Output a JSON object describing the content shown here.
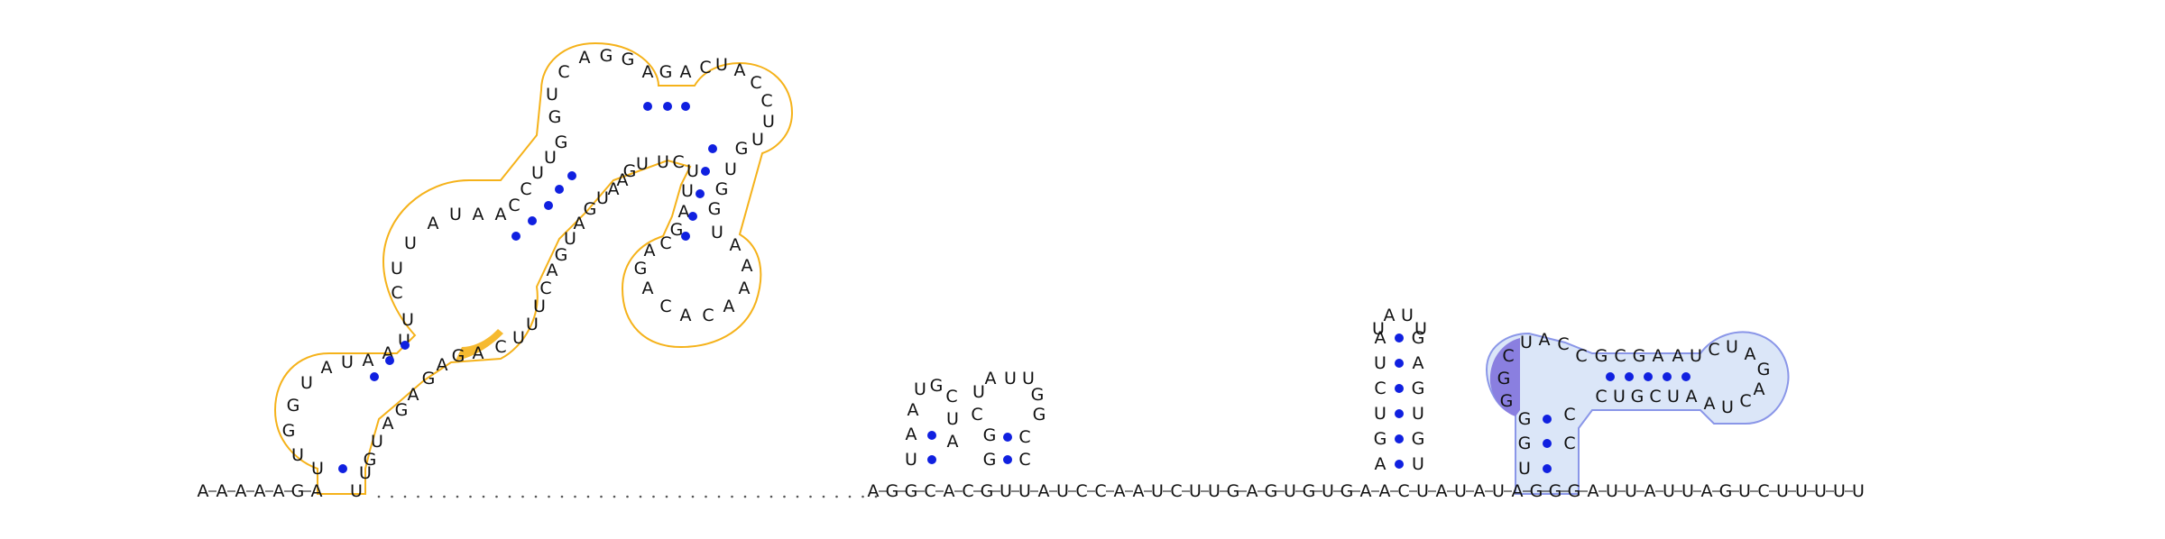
{
  "colors": {
    "background": "#ffffff",
    "text": "#111111",
    "base_pair_dot": "#1020e0",
    "orange_outline": "#f5b21a",
    "orange_fill": "#f5b21a",
    "blue_outline": "#8a96e8",
    "blue_fill": "#dbe6f8",
    "purple_fill": "#8a7fe0"
  },
  "sequence": {
    "five_prime": "AAAAAGA",
    "dotted_gap": ".......................................",
    "main": "AGGCACGUUAUCCAAUCUUGAGUGUGAACUAUAUAGGGAUUAUUAGUCUUUUU"
  },
  "structure": {
    "orange_domain_letters": [
      "U",
      "U",
      "G",
      "G",
      "U",
      "A",
      "U",
      "A",
      "A",
      "U",
      "U",
      "C",
      "U",
      "U",
      "A",
      "U",
      "A",
      "A",
      "C",
      "C",
      "U",
      "U",
      "G",
      "G",
      "U",
      "C",
      "A",
      "G",
      "G",
      "A",
      "G",
      "A",
      "C",
      "U",
      "A",
      "C",
      "C",
      "U",
      "U",
      "G",
      "U",
      "G",
      "G",
      "U",
      "A",
      "A",
      "A",
      "A",
      "C",
      "A",
      "C",
      "A",
      "G",
      "A",
      "C",
      "G",
      "A",
      "U",
      "U",
      "C",
      "U",
      "U",
      "G",
      "A",
      "A",
      "U",
      "G",
      "A",
      "U",
      "G",
      "A",
      "C",
      "U",
      "U",
      "U",
      "C",
      "A",
      "G",
      "A",
      "G",
      "A",
      "G",
      "A",
      "U",
      "G",
      "U",
      "U",
      "G",
      "A",
      "C",
      "C",
      "A",
      "A",
      "C",
      "U",
      "G",
      "A",
      "G",
      "U"
    ],
    "small_hairpins": [
      {
        "stem": [
          "U",
          "A",
          "A"
        ],
        "loop": [
          "U",
          "G",
          "C"
        ],
        "pair": [
          "A",
          "U"
        ]
      },
      {
        "stem": [
          "G",
          "G",
          "C"
        ],
        "loop": [
          "A",
          "U",
          "U",
          "G",
          "G"
        ],
        "pair": [
          "C",
          "C"
        ]
      },
      {
        "stem": [
          "G",
          "U",
          "G",
          "A",
          "C",
          "U"
        ],
        "loop": [
          "A",
          "U",
          "U"
        ],
        "pair": [
          "U",
          "G",
          "U",
          "G",
          "A",
          "C"
        ]
      }
    ],
    "blue_domain_letters": [
      "U",
      "G",
      "G",
      "G",
      "G",
      "C",
      "U",
      "A",
      "C",
      "C",
      "G",
      "C",
      "G",
      "A",
      "A",
      "U",
      "C",
      "U",
      "A",
      "G",
      "A",
      "C",
      "U",
      "A",
      "A",
      "U",
      "C",
      "G",
      "U",
      "C",
      "C",
      "C"
    ]
  }
}
